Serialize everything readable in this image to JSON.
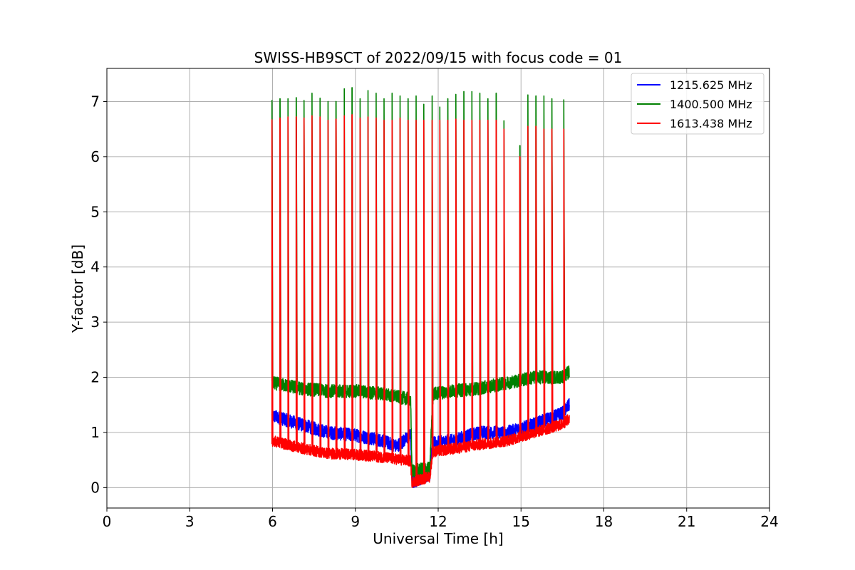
{
  "chart_data": {
    "type": "line",
    "title": "SWISS-HB9SCT of 2022/09/15 with focus code = 01",
    "xlabel": "Universal Time [h]",
    "ylabel": "Y-factor [dB]",
    "xlim": [
      0,
      24
    ],
    "ylim": [
      -0.37,
      7.6
    ],
    "xticks": [
      0,
      3,
      6,
      9,
      12,
      15,
      18,
      21,
      24
    ],
    "yticks": [
      0,
      1,
      2,
      3,
      4,
      5,
      6,
      7
    ],
    "grid": true,
    "legend_position": "top-right",
    "series": [
      {
        "name": "1215.625 MHz",
        "color": "#0000ff",
        "baseline": [
          [
            6.0,
            1.3
          ],
          [
            7.0,
            1.15
          ],
          [
            8.0,
            1.0
          ],
          [
            9.0,
            0.95
          ],
          [
            10.0,
            0.85
          ],
          [
            10.5,
            0.75
          ],
          [
            11.0,
            0.95
          ],
          [
            11.05,
            0.1
          ],
          [
            11.7,
            0.25
          ],
          [
            11.8,
            0.8
          ],
          [
            12.5,
            0.85
          ],
          [
            13.5,
            1.0
          ],
          [
            14.5,
            1.0
          ],
          [
            15.5,
            1.15
          ],
          [
            16.5,
            1.35
          ],
          [
            16.75,
            1.5
          ]
        ],
        "noise": 0.12,
        "peaks": []
      },
      {
        "name": "1400.500 MHz",
        "color": "#008000",
        "baseline": [
          [
            6.0,
            1.9
          ],
          [
            7.0,
            1.8
          ],
          [
            8.0,
            1.75
          ],
          [
            9.0,
            1.75
          ],
          [
            10.0,
            1.7
          ],
          [
            11.0,
            1.6
          ],
          [
            11.05,
            0.3
          ],
          [
            11.7,
            0.35
          ],
          [
            11.8,
            1.7
          ],
          [
            12.5,
            1.75
          ],
          [
            13.5,
            1.8
          ],
          [
            14.5,
            1.9
          ],
          [
            15.5,
            2.0
          ],
          [
            16.5,
            2.0
          ],
          [
            16.75,
            2.1
          ]
        ],
        "noise": 0.12,
        "peaks": [
          7.02,
          7.05,
          7.05,
          7.07,
          7.02,
          7.15,
          7.06,
          7.0,
          7.0,
          7.23,
          7.25,
          7.05,
          7.2,
          7.15,
          7.05,
          7.15,
          7.1,
          7.05,
          7.1,
          6.95,
          7.1,
          6.9,
          7.05,
          7.13,
          7.18,
          7.18,
          7.15,
          7.05,
          7.15,
          6.65,
          6.2,
          7.12,
          7.1,
          7.1,
          7.05,
          7.03
        ]
      },
      {
        "name": "1613.438 MHz",
        "color": "#ff0000",
        "baseline": [
          [
            6.0,
            0.85
          ],
          [
            7.0,
            0.72
          ],
          [
            8.0,
            0.62
          ],
          [
            9.0,
            0.6
          ],
          [
            10.0,
            0.55
          ],
          [
            11.0,
            0.48
          ],
          [
            11.05,
            0.1
          ],
          [
            11.7,
            0.2
          ],
          [
            11.8,
            0.65
          ],
          [
            12.5,
            0.7
          ],
          [
            13.5,
            0.78
          ],
          [
            14.5,
            0.85
          ],
          [
            15.5,
            1.0
          ],
          [
            16.5,
            1.15
          ],
          [
            16.75,
            1.25
          ]
        ],
        "noise": 0.1,
        "peaks": [
          6.67,
          6.7,
          6.72,
          6.72,
          6.7,
          6.74,
          6.72,
          6.66,
          6.68,
          6.74,
          6.76,
          6.7,
          6.72,
          6.7,
          6.66,
          6.66,
          6.7,
          6.66,
          6.66,
          6.66,
          6.66,
          6.66,
          6.66,
          6.68,
          6.66,
          6.66,
          6.66,
          6.66,
          6.66,
          6.5,
          6.0,
          6.55,
          6.55,
          6.5,
          6.5,
          6.5
        ]
      }
    ],
    "peak_times": [
      5.98,
      6.27,
      6.56,
      6.86,
      7.14,
      7.43,
      7.72,
      8.01,
      8.3,
      8.6,
      8.88,
      9.17,
      9.46,
      9.75,
      10.04,
      10.33,
      10.62,
      10.91,
      11.2,
      11.48,
      11.78,
      12.06,
      12.35,
      12.64,
      12.93,
      13.22,
      13.51,
      13.8,
      14.1,
      14.38,
      14.96,
      15.25,
      15.54,
      15.83,
      16.12,
      16.55
    ]
  }
}
